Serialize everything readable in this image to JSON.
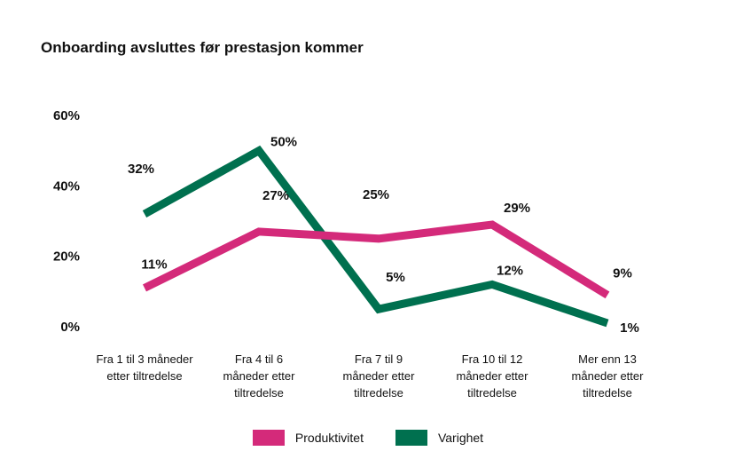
{
  "chart_data": {
    "type": "line",
    "title": "Onboarding avsluttes før prestasjon kommer",
    "categories": [
      [
        "Fra 1 til 3 måneder",
        "etter tiltredelse"
      ],
      [
        "Fra 4 til 6",
        "måneder etter",
        "tiltredelse"
      ],
      [
        "Fra 7 til 9",
        "måneder etter",
        "tiltredelse"
      ],
      [
        "Fra 10 til 12",
        "måneder etter",
        "tiltredelse"
      ],
      [
        "Mer enn 13",
        "måneder etter",
        "tiltredelse"
      ]
    ],
    "y_ticks": [
      "0%",
      "20%",
      "40%",
      "60%"
    ],
    "y_tick_values": [
      0,
      20,
      40,
      60
    ],
    "ylim": [
      0,
      60
    ],
    "series": [
      {
        "name": "Produktivitet",
        "color": "#d42a7a",
        "values": [
          11,
          27,
          25,
          29,
          9
        ],
        "labels": [
          "11%",
          "27%",
          "25%",
          "29%",
          "9%"
        ]
      },
      {
        "name": "Varighet",
        "color": "#00704f",
        "values": [
          32,
          50,
          5,
          12,
          1
        ],
        "labels": [
          "32%",
          "50%",
          "5%",
          "12%",
          "1%"
        ]
      }
    ]
  }
}
